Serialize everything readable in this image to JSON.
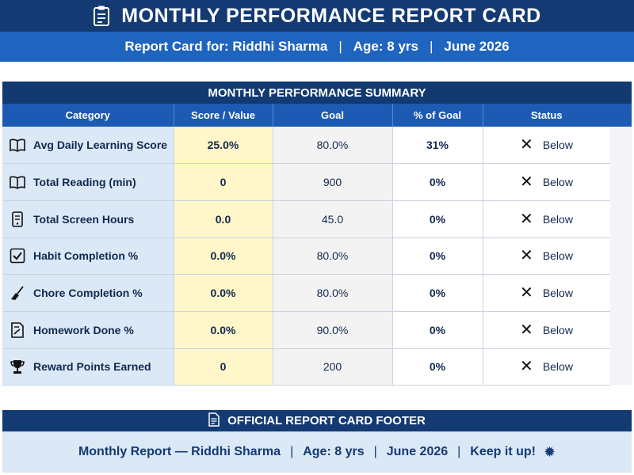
{
  "header": {
    "icon": "clipboard-icon",
    "title": "MONTHLY PERFORMANCE REPORT CARD",
    "report_for": "Report Card for: Riddhi Sharma",
    "age": "Age: 8 yrs",
    "period": "June 2026",
    "separator": "|"
  },
  "summary": {
    "title": "MONTHLY PERFORMANCE SUMMARY",
    "columns": [
      "Category",
      "Score / Value",
      "Goal",
      "% of Goal",
      "Status"
    ],
    "rows": [
      {
        "icon": "open-book-icon",
        "category": "Avg Daily Learning Score",
        "score": "25.0%",
        "goal": "80.0%",
        "pct": "31%",
        "status": "Below"
      },
      {
        "icon": "book-icon",
        "category": "Total Reading (min)",
        "score": "0",
        "goal": "900",
        "pct": "0%",
        "status": "Below"
      },
      {
        "icon": "phone-icon",
        "category": "Total Screen Hours",
        "score": "0.0",
        "goal": "45.0",
        "pct": "0%",
        "status": "Below"
      },
      {
        "icon": "checkbox-icon",
        "category": "Habit Completion %",
        "score": "0.0%",
        "goal": "80.0%",
        "pct": "0%",
        "status": "Below"
      },
      {
        "icon": "broom-icon",
        "category": "Chore Completion %",
        "score": "0.0%",
        "goal": "80.0%",
        "pct": "0%",
        "status": "Below"
      },
      {
        "icon": "homework-icon",
        "category": "Homework Done %",
        "score": "0.0%",
        "goal": "90.0%",
        "pct": "0%",
        "status": "Below"
      },
      {
        "icon": "trophy-icon",
        "category": "Reward Points Earned",
        "score": "0",
        "goal": "200",
        "pct": "0%",
        "status": "Below"
      }
    ]
  },
  "footer": {
    "icon": "document-icon",
    "title": "OFFICIAL REPORT CARD FOOTER",
    "parts": [
      "Monthly Report — Riddhi Sharma",
      "Age: 8 yrs",
      "June 2026",
      "Keep it up!"
    ],
    "separator": "|",
    "badge_icon": "gear-icon"
  },
  "colors": {
    "navy": "#133a73",
    "blue": "#1f64bf",
    "header_blue": "#1d5ab3",
    "light_blue": "#dbe8f6",
    "highlight_yellow": "#fff6c9"
  }
}
